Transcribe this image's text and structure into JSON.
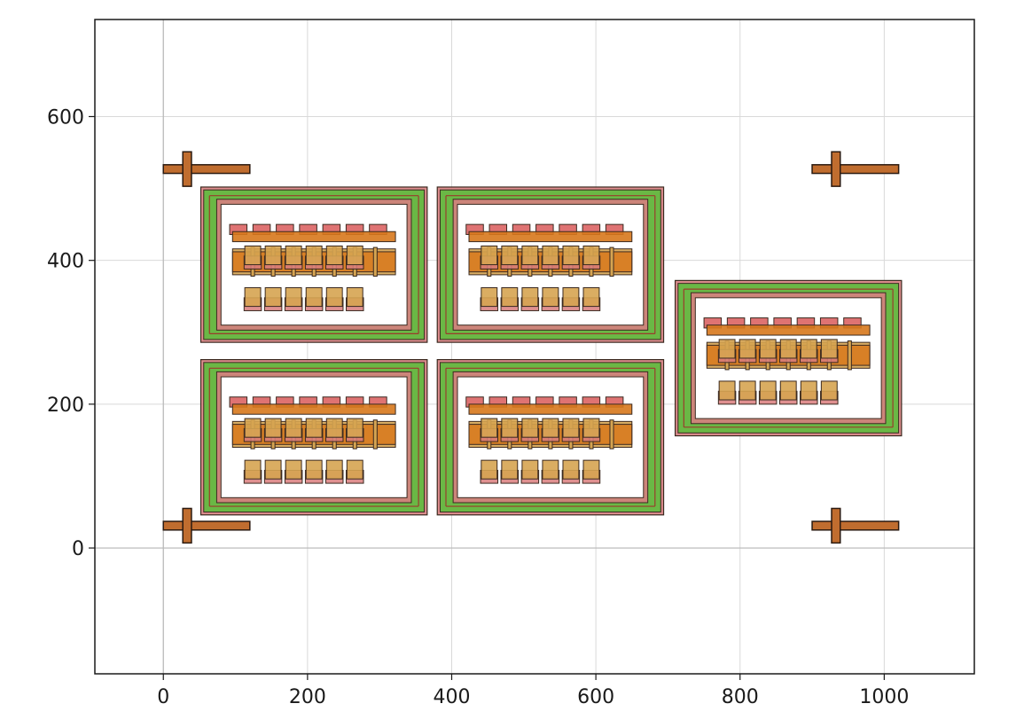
{
  "chart_data": {
    "type": "layout",
    "xlim": [
      -95,
      1125
    ],
    "ylim": [
      -175,
      735
    ],
    "grid": true,
    "x_ticks": [
      0,
      200,
      400,
      600,
      800,
      1000
    ],
    "y_ticks": [
      0,
      200,
      400,
      600
    ],
    "x_tick_labels": [
      "0",
      "200",
      "400",
      "600",
      "800",
      "1000"
    ],
    "y_tick_labels": [
      "0",
      "200",
      "400",
      "600"
    ],
    "colors": {
      "frame_outer": "#d77f7f",
      "frame_green": "#6ab845",
      "frame_inner_line": "#9a3c2c",
      "bar_orange": "#d7781c",
      "bar_red": "#d95a5a",
      "pad_tan": "#d6a451",
      "pad_red": "#d97c7c",
      "marker": "#c06d2f",
      "grid": "#d9d9d9",
      "axis": "#1a1a1a"
    },
    "cells": [
      {
        "x0": 52,
        "x1": 366,
        "y0": 286,
        "y1": 502
      },
      {
        "x0": 380,
        "x1": 694,
        "y0": 286,
        "y1": 502
      },
      {
        "x0": 52,
        "x1": 366,
        "y0": 46,
        "y1": 262
      },
      {
        "x0": 380,
        "x1": 694,
        "y0": 46,
        "y1": 262
      },
      {
        "x0": 710,
        "x1": 1024,
        "y0": 156,
        "y1": 372
      }
    ],
    "markers": [
      {
        "x": 33,
        "y": 527
      },
      {
        "x": 933,
        "y": 527
      },
      {
        "x": 33,
        "y": 31
      },
      {
        "x": 933,
        "y": 31
      }
    ]
  }
}
